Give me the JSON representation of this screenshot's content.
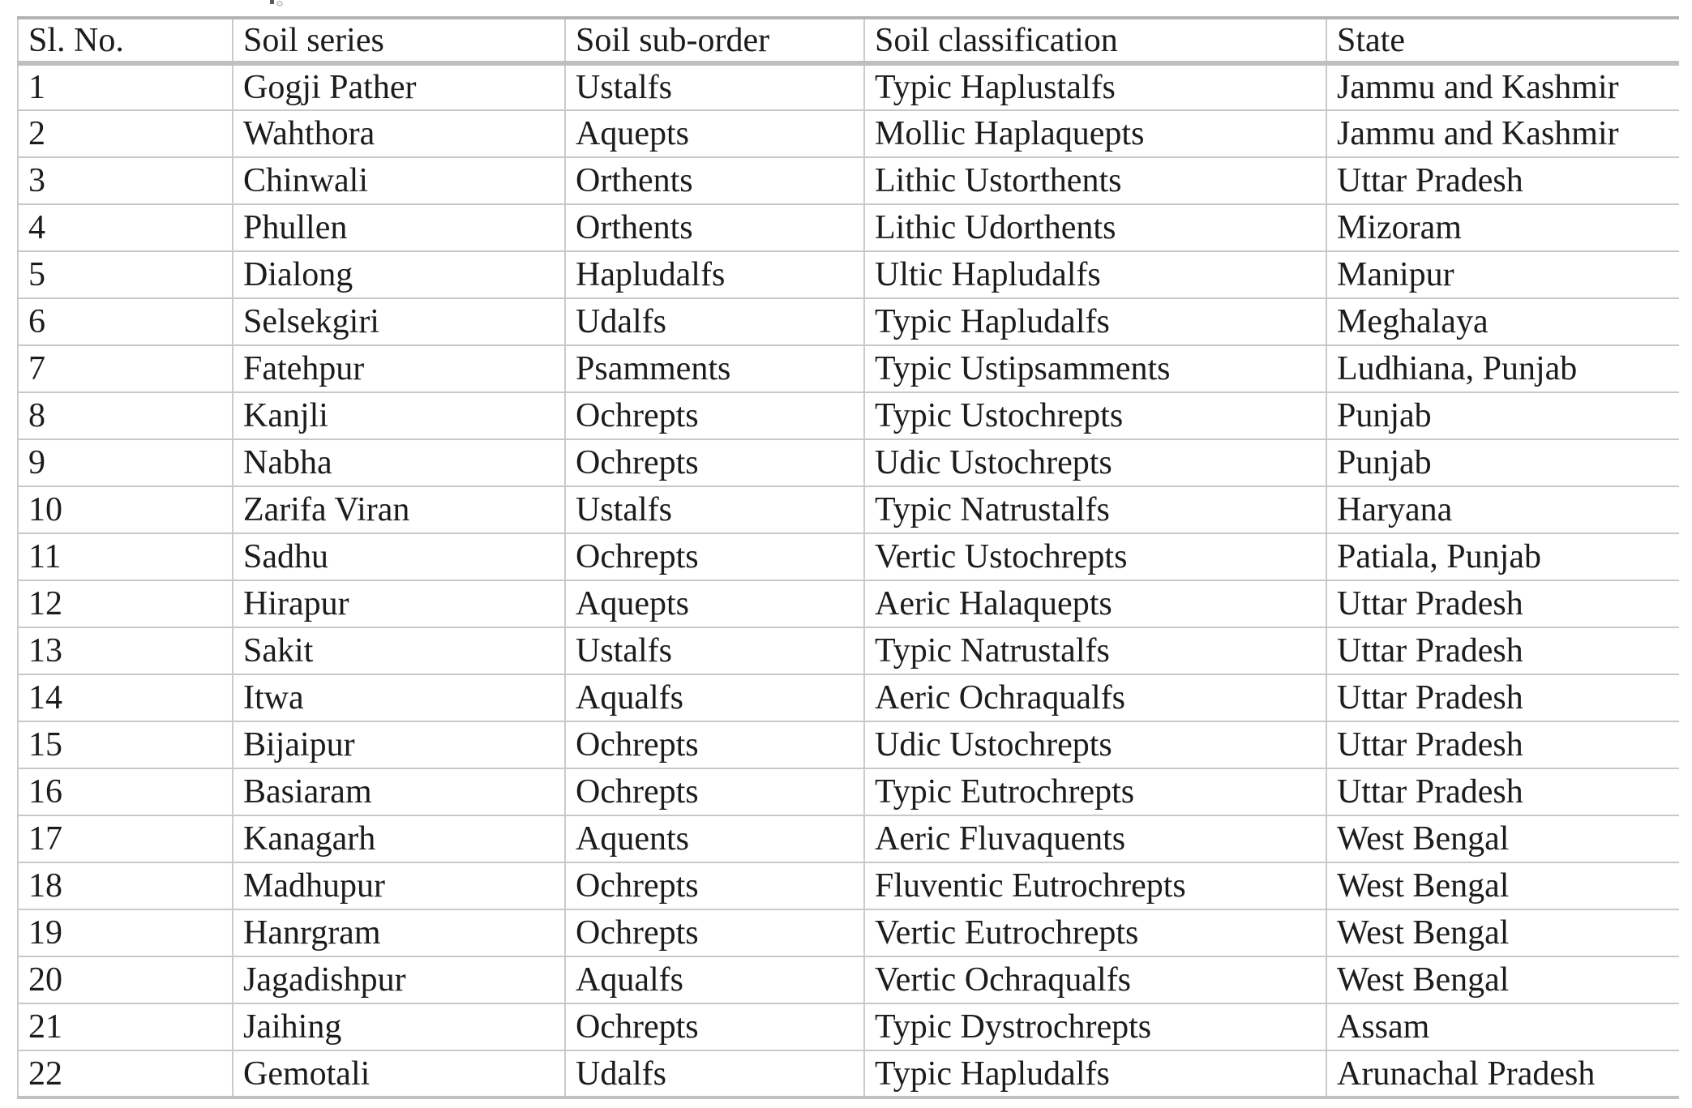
{
  "page": {
    "background_color": "#ffffff",
    "text_color": "#1c1c1c"
  },
  "theme": {
    "vertical_rule_color": "#cbcbcb",
    "row_rule_color": "#c8c8c8",
    "top_rule_color": "#b4b4b4",
    "header_rule_color": "#bfbfbf",
    "bottom_rule_color": "#c0c0c0"
  },
  "table": {
    "column_keys": [
      "sl-no",
      "soil-series",
      "soil-sub-order",
      "soil-classification",
      "state"
    ],
    "columns": [
      "Sl. No.",
      "Soil series",
      "Soil sub-order",
      "Soil classification",
      "State"
    ],
    "rows": [
      [
        "1",
        "Gogji Pather",
        "Ustalfs",
        "Typic Haplustalfs",
        "Jammu and Kashmir"
      ],
      [
        "2",
        "Wahthora",
        "Aquepts",
        "Mollic Haplaquepts",
        "Jammu and Kashmir"
      ],
      [
        "3",
        "Chinwali",
        "Orthents",
        "Lithic Ustorthents",
        "Uttar Pradesh"
      ],
      [
        "4",
        "Phullen",
        "Orthents",
        "Lithic Udorthents",
        "Mizoram"
      ],
      [
        "5",
        "Dialong",
        "Hapludalfs",
        "Ultic Hapludalfs",
        "Manipur"
      ],
      [
        "6",
        "Selsekgiri",
        "Udalfs",
        "Typic Hapludalfs",
        "Meghalaya"
      ],
      [
        "7",
        "Fatehpur",
        "Psamments",
        "Typic Ustipsamments",
        "Ludhiana, Punjab"
      ],
      [
        "8",
        "Kanjli",
        "Ochrepts",
        "Typic Ustochrepts",
        "Punjab"
      ],
      [
        "9",
        "Nabha",
        "Ochrepts",
        "Udic Ustochrepts",
        "Punjab"
      ],
      [
        "10",
        "Zarifa Viran",
        "Ustalfs",
        "Typic Natrustalfs",
        "Haryana"
      ],
      [
        "11",
        "Sadhu",
        "Ochrepts",
        "Vertic Ustochrepts",
        "Patiala, Punjab"
      ],
      [
        "12",
        "Hirapur",
        "Aquepts",
        "Aeric Halaquepts",
        "Uttar Pradesh"
      ],
      [
        "13",
        "Sakit",
        "Ustalfs",
        "Typic Natrustalfs",
        "Uttar Pradesh"
      ],
      [
        "14",
        "Itwa",
        "Aqualfs",
        "Aeric Ochraqualfs",
        "Uttar Pradesh"
      ],
      [
        "15",
        "Bijaipur",
        "Ochrepts",
        "Udic Ustochrepts",
        "Uttar Pradesh"
      ],
      [
        "16",
        "Basiaram",
        "Ochrepts",
        "Typic Eutrochrepts",
        "Uttar Pradesh"
      ],
      [
        "17",
        "Kanagarh",
        "Aquents",
        "Aeric Fluvaquents",
        "West Bengal"
      ],
      [
        "18",
        "Madhupur",
        "Ochrepts",
        "Fluventic Eutrochrepts",
        "West Bengal"
      ],
      [
        "19",
        "Hanrgram",
        "Ochrepts",
        "Vertic Eutrochrepts",
        "West Bengal"
      ],
      [
        "20",
        "Jagadishpur",
        "Aqualfs",
        "Vertic Ochraqualfs",
        "West Bengal"
      ],
      [
        "21",
        "Jaihing",
        "Ochrepts",
        "Typic Dystrochrepts",
        "Assam"
      ],
      [
        "22",
        "Gemotali",
        "Udalfs",
        "Typic Hapludalfs",
        "Arunachal Pradesh"
      ]
    ]
  }
}
